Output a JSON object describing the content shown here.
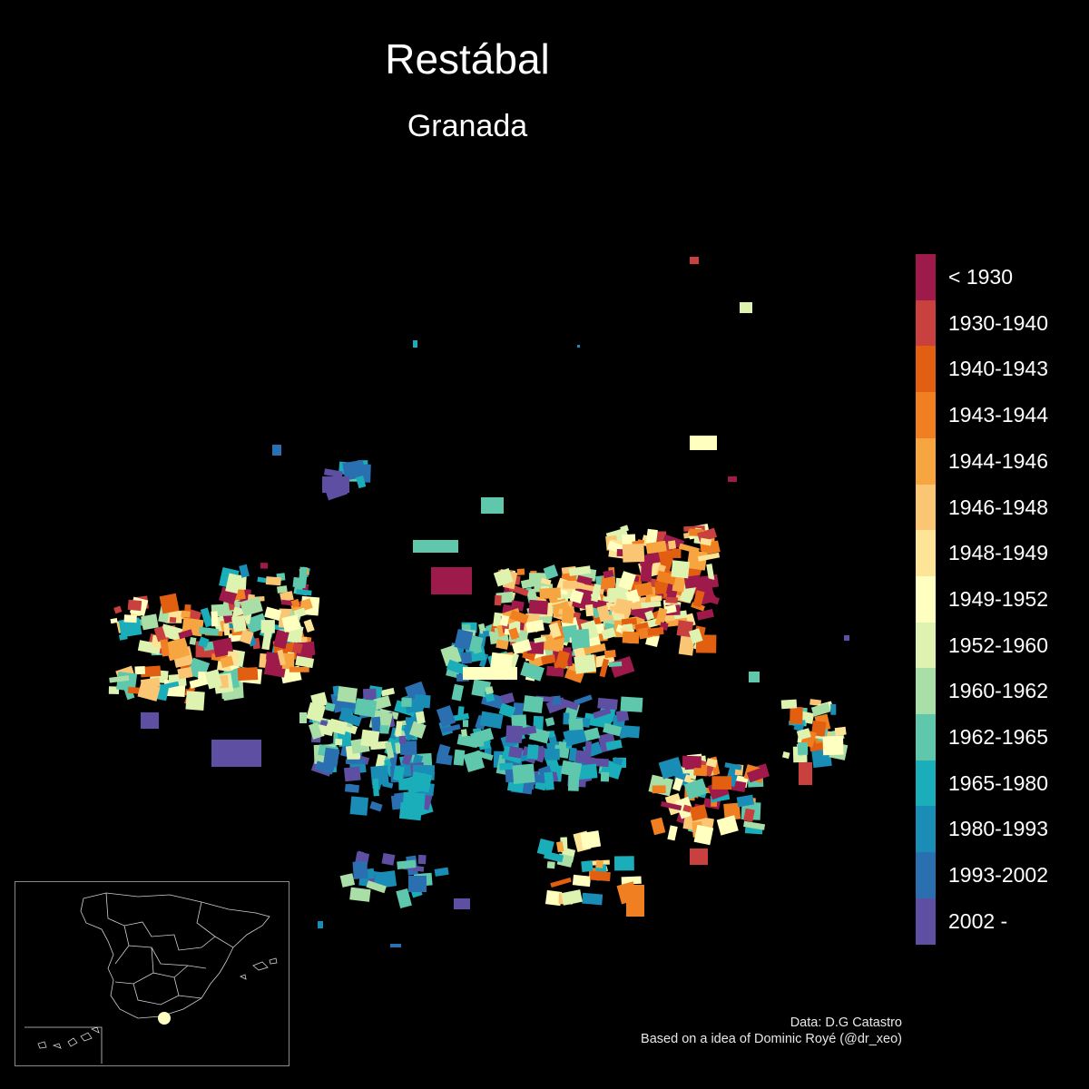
{
  "title": "Restábal",
  "subtitle": "Granada",
  "legend": [
    {
      "label": "< 1930",
      "color": "#9e1a4b"
    },
    {
      "label": "1930-1940",
      "color": "#c8413f"
    },
    {
      "label": "1940-1943",
      "color": "#e25e11"
    },
    {
      "label": "1943-1944",
      "color": "#ef7f20"
    },
    {
      "label": "1944-1946",
      "color": "#f7a541"
    },
    {
      "label": "1946-1948",
      "color": "#fbc673"
    },
    {
      "label": "1948-1949",
      "color": "#fde496"
    },
    {
      "label": "1949-1952",
      "color": "#ffffbf"
    },
    {
      "label": "1952-1960",
      "color": "#dff3b0"
    },
    {
      "label": "1960-1962",
      "color": "#a9dfa6"
    },
    {
      "label": "1962-1965",
      "color": "#5ec7ac"
    },
    {
      "label": "1965-1980",
      "color": "#1aaebb"
    },
    {
      "label": "1980-1993",
      "color": "#1a8db6"
    },
    {
      "label": "1993-2002",
      "color": "#2a6fb0"
    },
    {
      "label": "2002 -",
      "color": "#5e4fa2"
    }
  ],
  "credits": {
    "line1": "Data: D.G Catastro",
    "line2": "Based on a idea of Dominic Royé (@dr_xeo)"
  },
  "inset": {
    "location_marker_color": "#ffffbf"
  }
}
